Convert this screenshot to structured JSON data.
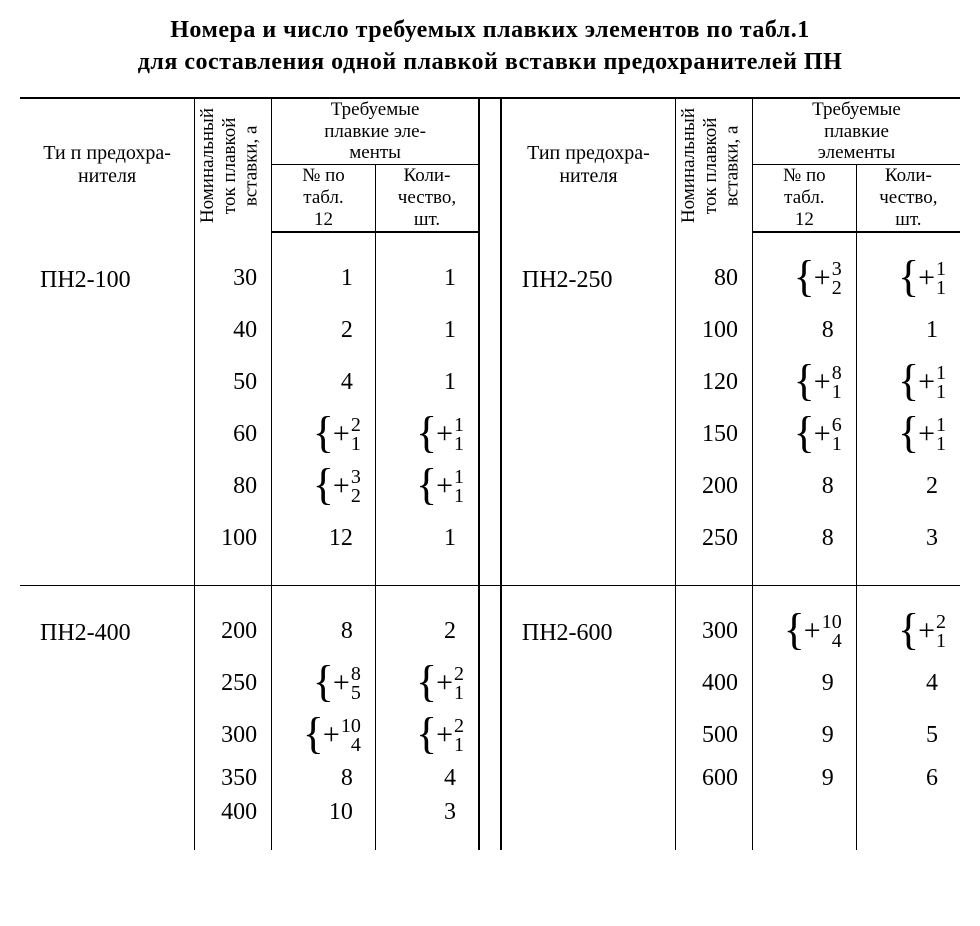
{
  "title_line1": "Номера и число требуемых плавких элементов по табл.1",
  "title_line2": "для составления одной плавкой вставки предохранителей ПН",
  "colors": {
    "ink": "#000000",
    "paper": "#ffffff",
    "rule": "#000000"
  },
  "typography": {
    "family": "Times New Roman",
    "title_pt": 24,
    "header_pt": 20,
    "body_pt": 24,
    "stack_small_pt": 20
  },
  "headers": {
    "type": "Тип предохра-\nнителя",
    "type_l": "Ти п предохра-\nнителя",
    "nominal": "Номинальный\nток плавкой\nвставки, а",
    "group": "Требуемые\nплавкие эле-\nменты",
    "group_r": "Требуемые\nплавкие\nэлементы",
    "col_no": "№ по\nтабл.\n12",
    "col_qty": "Коли-\nчество,\nшт.",
    "col_qty_r": "Коли-\nчество,\nшт."
  },
  "blocks": [
    {
      "left": {
        "type": "ПН2-100",
        "rows": [
          {
            "nom": "30",
            "no": "1",
            "qty": "1"
          },
          {
            "nom": "40",
            "no": "2",
            "qty": "1"
          },
          {
            "nom": "50",
            "no": "4",
            "qty": "1"
          },
          {
            "nom": "60",
            "no": {
              "a": "2",
              "b": "1"
            },
            "qty": {
              "a": "1",
              "b": "1"
            }
          },
          {
            "nom": "80",
            "no": {
              "a": "3",
              "b": "2"
            },
            "qty": {
              "a": "1",
              "b": "1"
            }
          },
          {
            "nom": "100",
            "no": "12",
            "qty": "1"
          }
        ]
      },
      "right": {
        "type": "ПН2-250",
        "rows": [
          {
            "nom": "80",
            "no": {
              "a": "3",
              "b": "2"
            },
            "qty": {
              "a": "1",
              "b": "1"
            }
          },
          {
            "nom": "100",
            "no": "8",
            "qty": "1"
          },
          {
            "nom": "120",
            "no": {
              "a": "8",
              "b": "1"
            },
            "qty": {
              "a": "1",
              "b": "1"
            }
          },
          {
            "nom": "150",
            "no": {
              "a": "6",
              "b": "1"
            },
            "qty": {
              "a": "1",
              "b": "1"
            }
          },
          {
            "nom": "200",
            "no": "8",
            "qty": "2"
          },
          {
            "nom": "250",
            "no": "8",
            "qty": "3"
          }
        ]
      }
    },
    {
      "left": {
        "type": "ПН2-400",
        "rows": [
          {
            "nom": "200",
            "no": "8",
            "qty": "2"
          },
          {
            "nom": "250",
            "no": {
              "a": "8",
              "b": "5"
            },
            "qty": {
              "a": "2",
              "b": "1"
            }
          },
          {
            "nom": "300",
            "no": {
              "a": "10",
              "b": "4"
            },
            "qty": {
              "a": "2",
              "b": "1"
            }
          },
          {
            "nom": "350",
            "no": "8",
            "qty": "4",
            "tight": true
          },
          {
            "nom": "400",
            "no": "10",
            "qty": "3",
            "tight": true
          }
        ]
      },
      "right": {
        "type": "ПН2-600",
        "rows": [
          {
            "nom": "300",
            "no": {
              "a": "10",
              "b": "4"
            },
            "qty": {
              "a": "2",
              "b": "1"
            }
          },
          {
            "nom": "400",
            "no": "9",
            "qty": "4"
          },
          {
            "nom": "500",
            "no": "9",
            "qty": "5"
          },
          {
            "nom": "600",
            "no": "9",
            "qty": "6"
          }
        ]
      }
    }
  ]
}
